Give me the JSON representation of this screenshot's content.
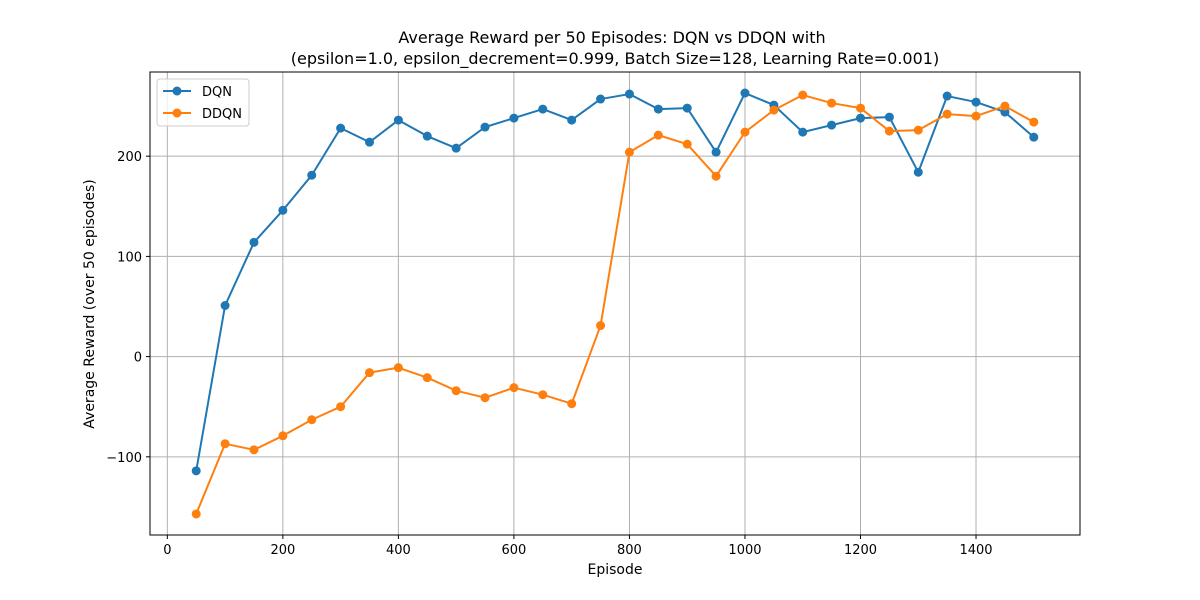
{
  "chart_data": {
    "type": "line",
    "title_line1": "Average Reward per 50 Episodes: DQN vs DDQN with",
    "title_line2": "(epsilon=1.0, epsilon_decrement=0.999, Batch Size=128, Learning Rate=0.001)",
    "xlabel": "Episode",
    "ylabel": "Average Reward (over 50 episodes)",
    "xlim": [
      -30,
      1580
    ],
    "ylim": [
      -178,
      284
    ],
    "xticks": [
      0,
      200,
      400,
      600,
      800,
      1000,
      1200,
      1400
    ],
    "yticks": [
      -100,
      0,
      100,
      200
    ],
    "grid": true,
    "legend_position": "top-left",
    "x": [
      50,
      100,
      150,
      200,
      250,
      300,
      350,
      400,
      450,
      500,
      550,
      600,
      650,
      700,
      750,
      800,
      850,
      900,
      950,
      1000,
      1050,
      1100,
      1150,
      1200,
      1250,
      1300,
      1350,
      1400,
      1450,
      1500
    ],
    "series": [
      {
        "name": "DQN",
        "color": "#1f77b4",
        "values": [
          -114,
          51,
          114,
          146,
          181,
          228,
          214,
          236,
          220,
          208,
          229,
          238,
          247,
          236,
          257,
          262,
          247,
          248,
          204,
          263,
          251,
          224,
          231,
          238,
          239,
          184,
          260,
          254,
          244,
          219
        ]
      },
      {
        "name": "DDQN",
        "color": "#ff7f0e",
        "values": [
          -157,
          -87,
          -93,
          -79,
          -63,
          -50,
          -16,
          -11,
          -21,
          -34,
          -41,
          -31,
          -38,
          -47,
          31,
          204,
          221,
          212,
          180,
          224,
          246,
          261,
          253,
          248,
          225,
          226,
          242,
          240,
          250,
          234
        ]
      }
    ]
  }
}
